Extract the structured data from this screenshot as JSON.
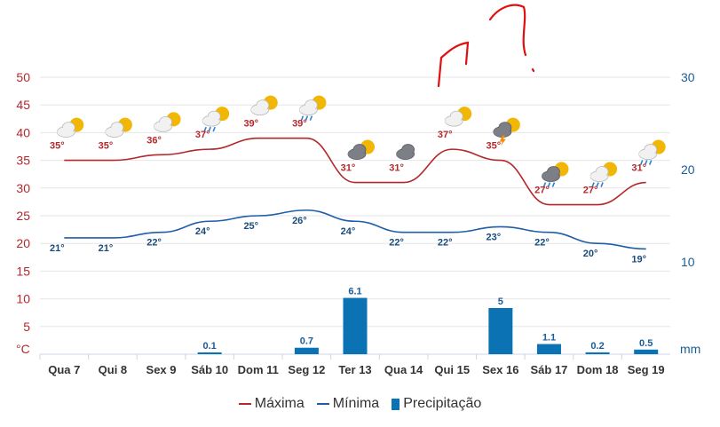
{
  "chart_data": {
    "type": "line",
    "categories": [
      "Qua 7",
      "Qui 8",
      "Sex 9",
      "Sáb 10",
      "Dom 11",
      "Seg 12",
      "Ter 13",
      "Qua 14",
      "Qui 15",
      "Sex 16",
      "Sáb 17",
      "Dom 18",
      "Seg 19"
    ],
    "series": [
      {
        "name": "Máxima",
        "type": "line",
        "axis": "left",
        "color": "#b4282c",
        "values": [
          35,
          35,
          36,
          37,
          39,
          39,
          31,
          31,
          37,
          35,
          27,
          27,
          31
        ]
      },
      {
        "name": "Mínima",
        "type": "line",
        "axis": "left",
        "color": "#1f5ea8",
        "values": [
          21,
          21,
          22,
          24,
          25,
          26,
          24,
          22,
          22,
          23,
          22,
          20,
          19
        ]
      },
      {
        "name": "Precipitação",
        "type": "bar",
        "axis": "right",
        "color": "#0b73b3",
        "values": [
          0,
          0,
          0,
          0.1,
          0,
          0.7,
          6.1,
          0,
          0,
          5,
          1.1,
          0.2,
          0.5
        ]
      }
    ],
    "max_labels": [
      "35°",
      "35°",
      "36°",
      "37°",
      "39°",
      "39°",
      "31°",
      "31°",
      "37°",
      "35°",
      "27°",
      "27°",
      "31°"
    ],
    "min_labels": [
      "21°",
      "21°",
      "22°",
      "24°",
      "25°",
      "26°",
      "24°",
      "22°",
      "22°",
      "23°",
      "22°",
      "20°",
      "19°"
    ],
    "precip_labels": [
      "",
      "",
      "",
      "0.1",
      "",
      "0.7",
      "6.1",
      "",
      "",
      "5",
      "1.1",
      "0.2",
      "0.5"
    ],
    "weather_icons": [
      "partly-sunny",
      "partly-sunny",
      "partly-sunny",
      "sun-rain",
      "partly-sunny",
      "sun-rain",
      "cloud-sun",
      "cloudy",
      "partly-sunny",
      "thunderstorm",
      "cloud-rain-sun",
      "sun-rain",
      "sun-rain"
    ],
    "left_axis": {
      "unit": "°C",
      "ticks": [
        "50",
        "45",
        "40",
        "35",
        "30",
        "25",
        "20",
        "15",
        "10",
        "5"
      ],
      "ylim": [
        0,
        50
      ]
    },
    "right_axis": {
      "unit": "mm",
      "ticks": [
        "30",
        "20",
        "10"
      ],
      "ylim": [
        0,
        30
      ]
    },
    "legend_placement": "bottom-center"
  },
  "legend": {
    "max_label": "Máxima",
    "min_label": "Mínima",
    "precip_label": "Precipitação"
  },
  "colors": {
    "max_line": "#b4282c",
    "min_line": "#1f5ea8",
    "precip_bar": "#0b73b3",
    "handwriting": "#e01010"
  }
}
